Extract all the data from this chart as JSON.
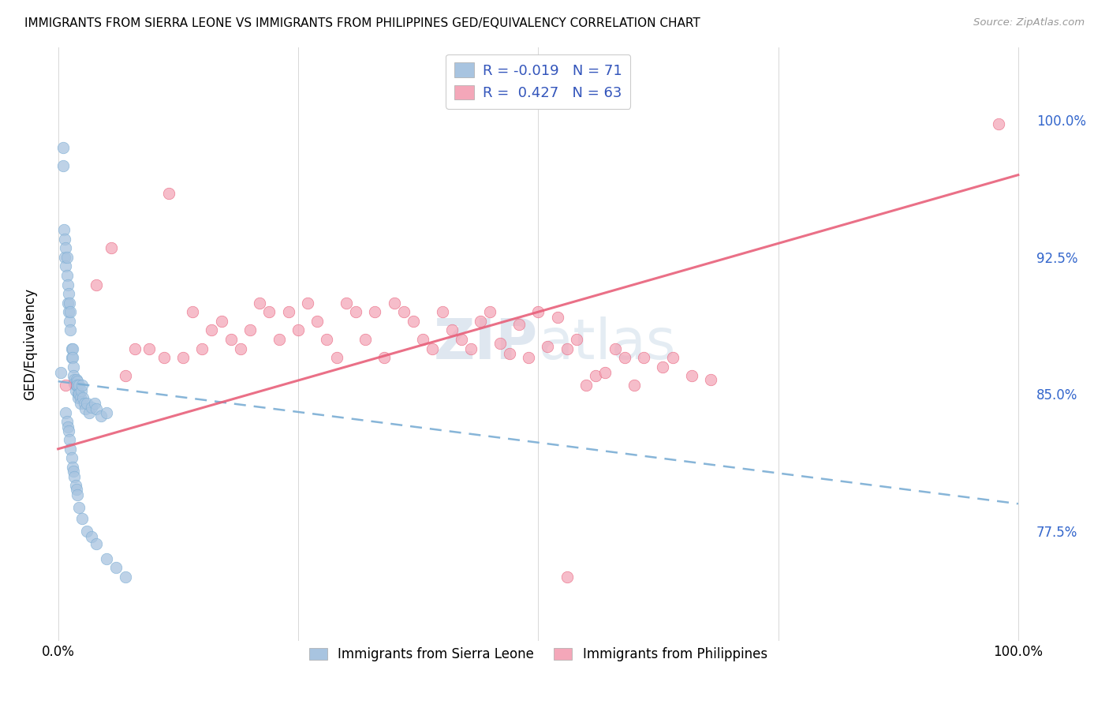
{
  "title": "IMMIGRANTS FROM SIERRA LEONE VS IMMIGRANTS FROM PHILIPPINES GED/EQUIVALENCY CORRELATION CHART",
  "source": "Source: ZipAtlas.com",
  "ylabel": "GED/Equivalency",
  "ytick_values": [
    0.775,
    0.85,
    0.925,
    1.0
  ],
  "color_blue": "#a8c4e0",
  "color_pink": "#f4a7b9",
  "trendline_blue_color": "#7aadd4",
  "trendline_pink_color": "#e8607a",
  "label_blue": "Immigrants from Sierra Leone",
  "label_pink": "Immigrants from Philippines",
  "legend_line1": "R = -0.019   N = 71",
  "legend_line2": "R =  0.427   N = 63",
  "sl_trendline": [
    0.857,
    0.79
  ],
  "ph_trendline": [
    0.82,
    0.97
  ],
  "sl_x": [
    0.003,
    0.005,
    0.005,
    0.006,
    0.007,
    0.007,
    0.008,
    0.008,
    0.009,
    0.009,
    0.01,
    0.01,
    0.011,
    0.011,
    0.012,
    0.012,
    0.013,
    0.013,
    0.014,
    0.014,
    0.015,
    0.015,
    0.016,
    0.016,
    0.017,
    0.017,
    0.018,
    0.018,
    0.019,
    0.019,
    0.02,
    0.02,
    0.021,
    0.021,
    0.022,
    0.022,
    0.023,
    0.023,
    0.024,
    0.025,
    0.026,
    0.027,
    0.028,
    0.03,
    0.032,
    0.035,
    0.038,
    0.04,
    0.045,
    0.05,
    0.008,
    0.009,
    0.01,
    0.011,
    0.012,
    0.013,
    0.014,
    0.015,
    0.016,
    0.017,
    0.018,
    0.019,
    0.02,
    0.022,
    0.025,
    0.03,
    0.035,
    0.04,
    0.05,
    0.06,
    0.07
  ],
  "sl_y": [
    0.862,
    0.985,
    0.975,
    0.94,
    0.935,
    0.925,
    0.93,
    0.92,
    0.925,
    0.915,
    0.91,
    0.9,
    0.905,
    0.895,
    0.9,
    0.89,
    0.895,
    0.885,
    0.875,
    0.87,
    0.875,
    0.87,
    0.865,
    0.86,
    0.858,
    0.856,
    0.855,
    0.852,
    0.858,
    0.855,
    0.857,
    0.855,
    0.85,
    0.848,
    0.855,
    0.85,
    0.848,
    0.845,
    0.852,
    0.855,
    0.848,
    0.845,
    0.842,
    0.845,
    0.84,
    0.843,
    0.845,
    0.842,
    0.838,
    0.84,
    0.84,
    0.835,
    0.832,
    0.83,
    0.825,
    0.82,
    0.815,
    0.81,
    0.808,
    0.805,
    0.8,
    0.798,
    0.795,
    0.788,
    0.782,
    0.775,
    0.772,
    0.768,
    0.76,
    0.755,
    0.75
  ],
  "ph_x": [
    0.008,
    0.04,
    0.055,
    0.07,
    0.08,
    0.095,
    0.11,
    0.115,
    0.13,
    0.14,
    0.15,
    0.16,
    0.17,
    0.18,
    0.19,
    0.2,
    0.21,
    0.22,
    0.23,
    0.24,
    0.25,
    0.26,
    0.27,
    0.28,
    0.29,
    0.3,
    0.31,
    0.32,
    0.33,
    0.34,
    0.35,
    0.36,
    0.37,
    0.38,
    0.39,
    0.4,
    0.41,
    0.42,
    0.43,
    0.44,
    0.45,
    0.46,
    0.47,
    0.48,
    0.49,
    0.5,
    0.51,
    0.52,
    0.53,
    0.54,
    0.55,
    0.56,
    0.57,
    0.58,
    0.59,
    0.6,
    0.61,
    0.63,
    0.64,
    0.66,
    0.68,
    0.53,
    0.98
  ],
  "ph_y": [
    0.855,
    0.91,
    0.93,
    0.86,
    0.875,
    0.875,
    0.87,
    0.96,
    0.87,
    0.895,
    0.875,
    0.885,
    0.89,
    0.88,
    0.875,
    0.885,
    0.9,
    0.895,
    0.88,
    0.895,
    0.885,
    0.9,
    0.89,
    0.88,
    0.87,
    0.9,
    0.895,
    0.88,
    0.895,
    0.87,
    0.9,
    0.895,
    0.89,
    0.88,
    0.875,
    0.895,
    0.885,
    0.88,
    0.875,
    0.89,
    0.895,
    0.878,
    0.872,
    0.888,
    0.87,
    0.895,
    0.876,
    0.892,
    0.875,
    0.88,
    0.855,
    0.86,
    0.862,
    0.875,
    0.87,
    0.855,
    0.87,
    0.865,
    0.87,
    0.86,
    0.858,
    0.75,
    0.998
  ]
}
